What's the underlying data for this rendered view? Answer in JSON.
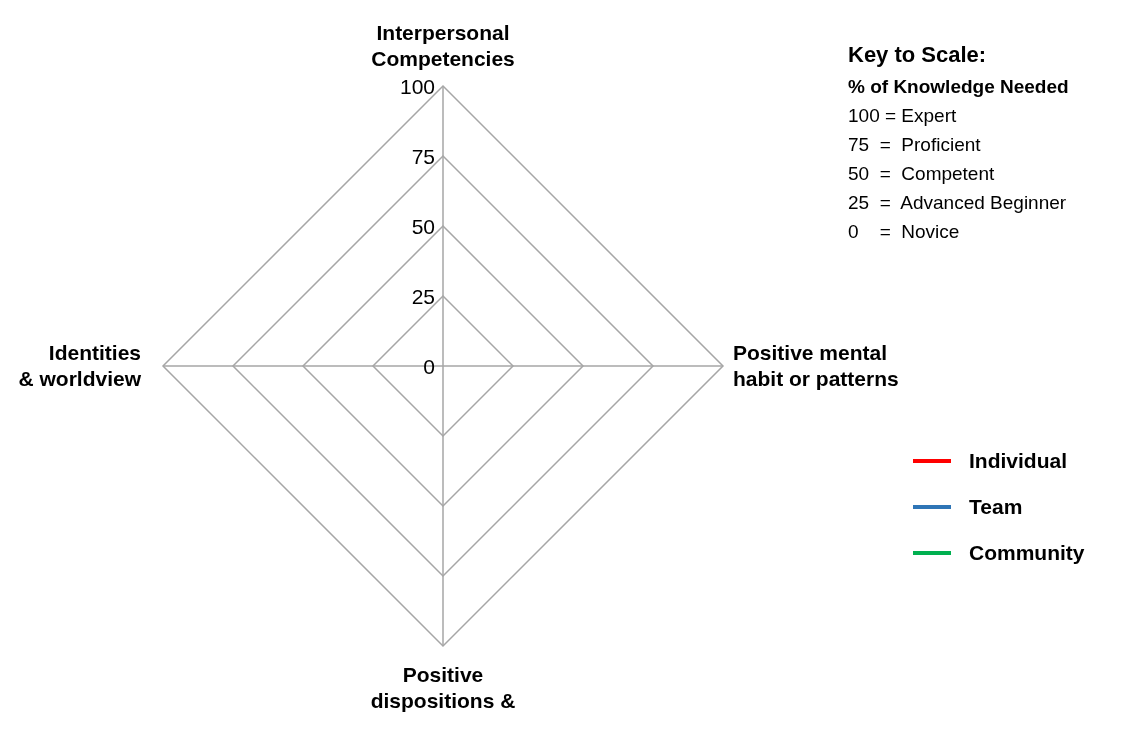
{
  "chart_data": {
    "type": "radar",
    "categories": [
      "Interpersonal Competencies",
      "Positive mental habit or patterns",
      "Positive dispositions &",
      "Identities & worldview"
    ],
    "series": [
      {
        "name": "Individual",
        "color": "#ff0000",
        "values": [
          null,
          null,
          null,
          null
        ]
      },
      {
        "name": "Team",
        "color": "#2e75b6",
        "values": [
          null,
          null,
          null,
          null
        ]
      },
      {
        "name": "Community",
        "color": "#00b050",
        "values": [
          null,
          null,
          null,
          null
        ]
      }
    ],
    "ylim": [
      0,
      100
    ],
    "yticks": [
      0,
      25,
      50,
      75,
      100
    ],
    "grid": true,
    "legend": "right",
    "annotations": [
      "Key to Scale:",
      "% of Knowledge Needed",
      "100 = Expert",
      "75  =  Proficient",
      "50  =  Competent",
      "25  =  Advanced Beginner",
      "0    =  Novice"
    ]
  }
}
